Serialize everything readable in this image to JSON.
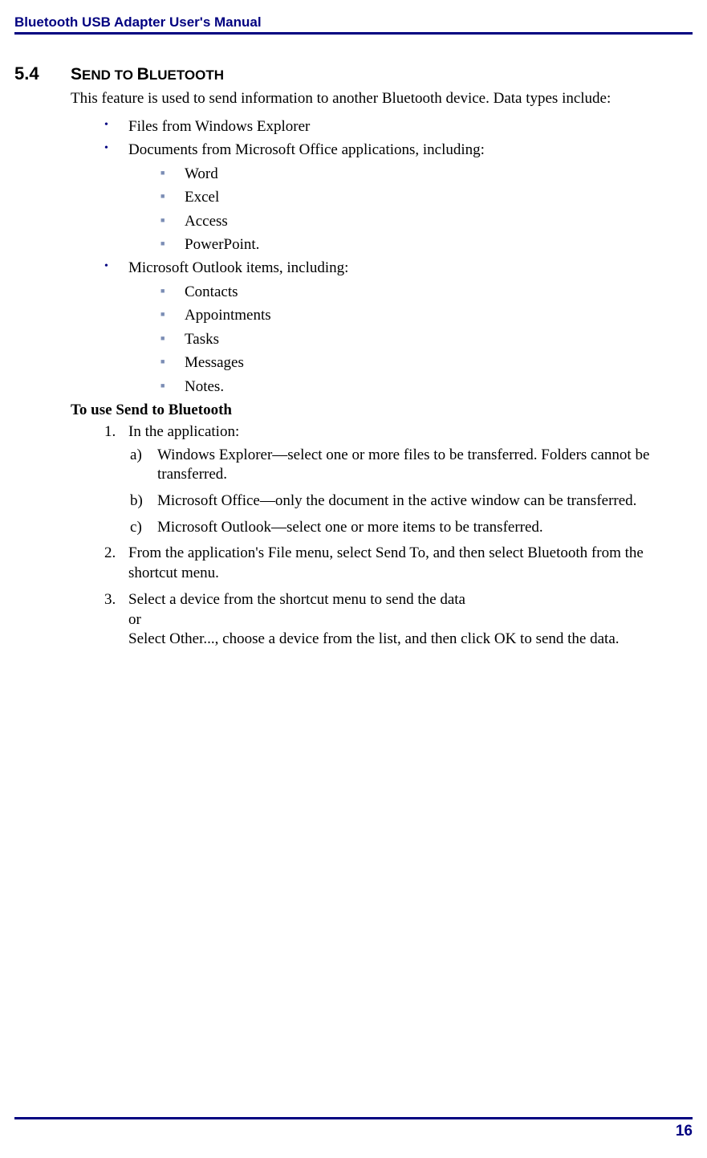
{
  "header": {
    "title": "Bluetooth USB Adapter User's Manual"
  },
  "section": {
    "number": "5.4",
    "title_main": "S",
    "title_rest1": "END TO ",
    "title_main2": "B",
    "title_rest2": "LUETOOTH",
    "intro": "This feature is used to send information to another Bluetooth device. Data types include:"
  },
  "bullets_l1": {
    "item0": "Files from Windows Explorer",
    "item1": "Documents from Microsoft Office applications, including:",
    "item2": "Microsoft Outlook items, including:"
  },
  "office_sub": {
    "i0": "Word",
    "i1": "Excel",
    "i2": "Access",
    "i3": "PowerPoint."
  },
  "outlook_sub": {
    "i0": "Contacts",
    "i1": "Appointments",
    "i2": "Tasks",
    "i3": "Messages",
    "i4": "Notes."
  },
  "sub_heading": "To use Send to Bluetooth",
  "steps": {
    "s1_intro": "In the application:",
    "s1_a": "Windows Explorer—select one or more files to be transferred. Folders cannot be transferred.",
    "s1_b": "Microsoft Office—only the document in the active window can be transferred.",
    "s1_c": "Microsoft Outlook—select one or more items to be transferred.",
    "s2": "From the application's File menu, select Send To, and then select Bluetooth from the shortcut menu.",
    "s3_line1": "Select a device from the shortcut menu to send the data",
    "s3_line2": "or",
    "s3_line3": "Select Other..., choose a device from the list, and then click OK to send the data."
  },
  "footer": {
    "page_number": "16"
  }
}
